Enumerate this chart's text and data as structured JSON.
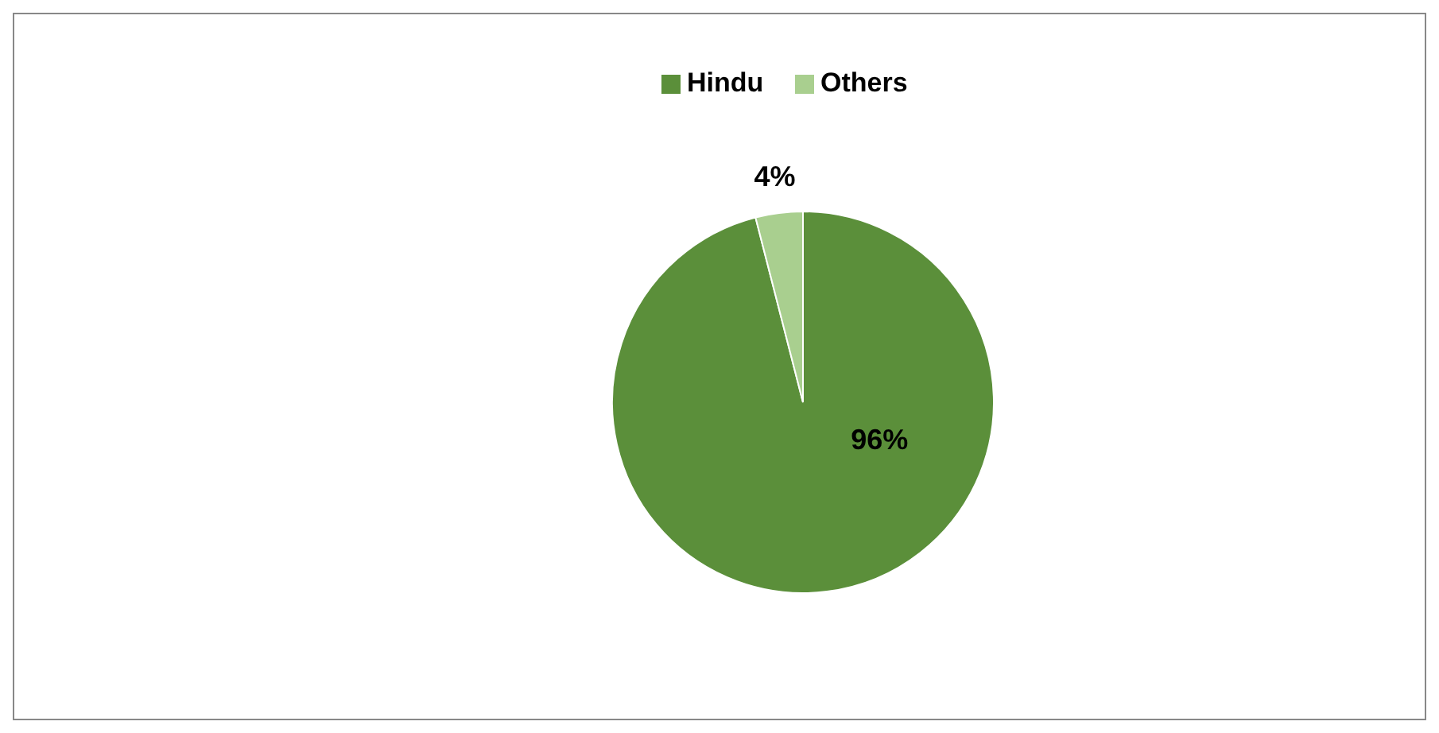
{
  "chart_data": {
    "type": "pie",
    "categories": [
      "Hindu",
      "Others"
    ],
    "values": [
      96,
      4
    ],
    "colors": [
      "#5b8f3a",
      "#a9cf8f"
    ],
    "value_labels": [
      "96%",
      "4%"
    ],
    "legend": "top"
  }
}
